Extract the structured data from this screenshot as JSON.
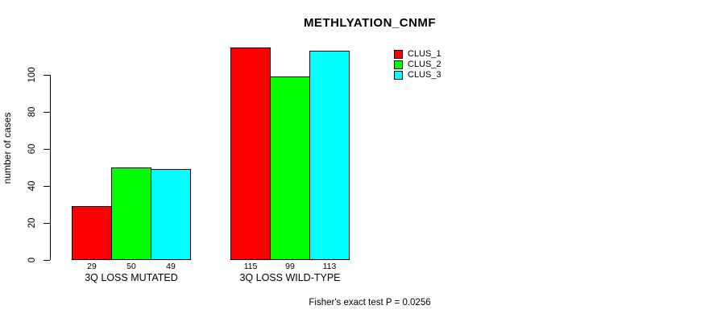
{
  "chart_data": {
    "type": "bar",
    "title": "METHLYATION_CNMF",
    "ylabel": "number of cases",
    "xlabel": "",
    "categories": [
      "3Q LOSS MUTATED",
      "3Q LOSS WILD-TYPE"
    ],
    "series": [
      {
        "name": "CLUS_1",
        "color": "#FF0000",
        "values": [
          29,
          115
        ]
      },
      {
        "name": "CLUS_2",
        "color": "#00FF00",
        "values": [
          50,
          99
        ]
      },
      {
        "name": "CLUS_3",
        "color": "#00FFFF",
        "values": [
          49,
          113
        ]
      }
    ],
    "yticks": [
      0,
      20,
      40,
      60,
      80,
      100
    ],
    "ylim": [
      0,
      118
    ],
    "bar_value_labels_shown": true,
    "grid": false,
    "legend_position": "top-right",
    "annotation": "Fisher's exact test P = 0.0256"
  }
}
